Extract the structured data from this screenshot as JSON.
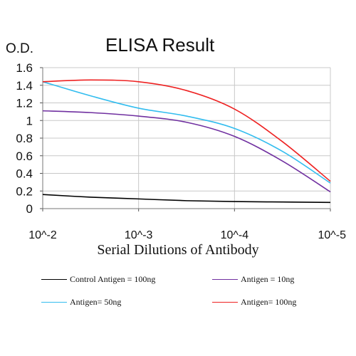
{
  "chart_data": {
    "type": "line",
    "title": "ELISA Result",
    "ylabel": "O.D.",
    "xlabel": "Serial Dilutions of Antibody",
    "x_tick_labels": [
      "10^-2",
      "10^-3",
      "10^-4",
      "10^-5"
    ],
    "y_tick_labels": [
      "0",
      "0.2",
      "0.4",
      "0.6",
      "0.8",
      "1",
      "1.2",
      "1.4",
      "1.6"
    ],
    "ylim": [
      0,
      1.6
    ],
    "x": [
      0,
      0.5,
      1,
      1.5,
      2,
      2.5,
      3
    ],
    "grid": true,
    "legend_position": "bottom",
    "series": [
      {
        "name": "Control Antigen = 100ng",
        "color": "#000000",
        "values": [
          0.16,
          0.13,
          0.11,
          0.09,
          0.08,
          0.075,
          0.07
        ]
      },
      {
        "name": "Antigen = 10ng",
        "color": "#7030A0",
        "values": [
          1.11,
          1.09,
          1.05,
          0.98,
          0.82,
          0.54,
          0.19
        ]
      },
      {
        "name": "Antigen= 50ng",
        "color": "#33BDEF",
        "values": [
          1.44,
          1.28,
          1.14,
          1.05,
          0.91,
          0.65,
          0.29
        ]
      },
      {
        "name": "Antigen= 100ng",
        "color": "#EE2222",
        "values": [
          1.44,
          1.46,
          1.44,
          1.34,
          1.13,
          0.76,
          0.31
        ]
      }
    ]
  }
}
